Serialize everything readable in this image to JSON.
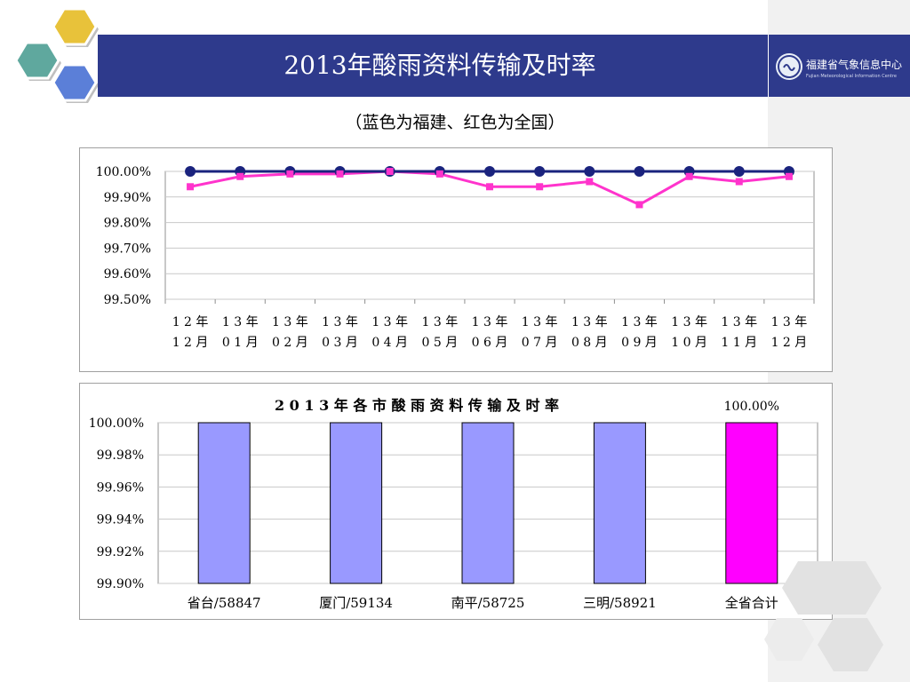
{
  "header": {
    "title": "2013年酸雨资料传输及时率"
  },
  "logo": {
    "name_cn": "福建省气象信息中心",
    "name_en": "Fujian Meteorological Information Centre"
  },
  "subtitle": "（蓝色为福建、红色为全国）",
  "colors": {
    "header_bg": "#2e3a8c",
    "fujian_line": "#1a237e",
    "national_line": "#ff33cc",
    "bar_city": "#9999ff",
    "bar_total": "#ff00ff",
    "grid": "#c8c8c8"
  },
  "icons": [
    "hexagon-decoration-icon",
    "meteorological-centre-logo-icon"
  ],
  "chart_data": [
    {
      "type": "line",
      "title": "",
      "x": [
        "12年\n12月",
        "13年\n01月",
        "13年\n02月",
        "13年\n03月",
        "13年\n04月",
        "13年\n05月",
        "13年\n06月",
        "13年\n07月",
        "13年\n08月",
        "13年\n09月",
        "13年\n10月",
        "13年\n11月",
        "13年\n12月"
      ],
      "x_label_lines": [
        [
          "1 2 年",
          "1 2 月"
        ],
        [
          "1 3 年",
          "0 1 月"
        ],
        [
          "1 3 年",
          "0 2 月"
        ],
        [
          "1 3 年",
          "0 3 月"
        ],
        [
          "1 3 年",
          "0 4 月"
        ],
        [
          "1 3 年",
          "0 5 月"
        ],
        [
          "1 3 年",
          "0 6 月"
        ],
        [
          "1 3 年",
          "0 7 月"
        ],
        [
          "1 3 年",
          "0 8 月"
        ],
        [
          "1 3 年",
          "0 9 月"
        ],
        [
          "1 3 年",
          "1 0 月"
        ],
        [
          "1 3 年",
          "1 1 月"
        ],
        [
          "1 3 年",
          "1 2 月"
        ]
      ],
      "series": [
        {
          "values": [
            100.0,
            100.0,
            100.0,
            100.0,
            100.0,
            100.0,
            100.0,
            100.0,
            100.0,
            100.0,
            100.0,
            100.0,
            100.0
          ]
        },
        {
          "values": [
            99.94,
            99.98,
            99.99,
            99.99,
            100.0,
            99.99,
            99.94,
            99.94,
            99.96,
            99.87,
            99.98,
            99.96,
            99.98
          ]
        }
      ],
      "yticks": [
        "100.00%",
        "99.90%",
        "99.80%",
        "99.70%",
        "99.60%",
        "99.50%"
      ],
      "ylim": [
        99.5,
        100.0
      ],
      "xlabel": "",
      "ylabel": "",
      "grid": true,
      "legend": "none"
    },
    {
      "type": "bar",
      "title": "2 0 1 3 年 各 市 酸 雨 资 料 传 输 及 时 率",
      "categories": [
        "省台/58847",
        "厦门/59134",
        "南平/58725",
        "三明/58921",
        "全省合计"
      ],
      "values": [
        100.0,
        100.0,
        100.0,
        100.0,
        100.0
      ],
      "data_labels": [
        "",
        "",
        "",
        "",
        "100.00%"
      ],
      "yticks": [
        "100.00%",
        "99.98%",
        "99.96%",
        "99.94%",
        "99.92%",
        "99.90%"
      ],
      "ylim": [
        99.9,
        100.0
      ],
      "xlabel": "",
      "ylabel": "",
      "grid": true,
      "legend": "none"
    }
  ]
}
